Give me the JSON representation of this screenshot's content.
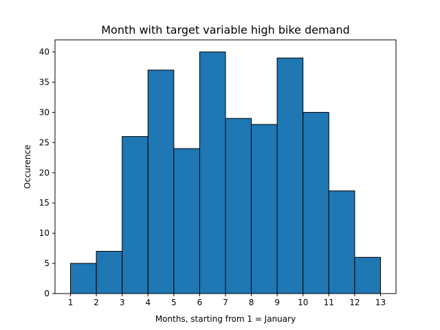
{
  "chart_data": {
    "type": "bar",
    "title": "Month with target variable high bike demand",
    "xlabel": "Months, starting from 1 = January",
    "ylabel": "Occurence",
    "bins": [
      {
        "start": 1,
        "end": 2,
        "value": 5
      },
      {
        "start": 2,
        "end": 3,
        "value": 7
      },
      {
        "start": 3,
        "end": 4,
        "value": 26
      },
      {
        "start": 4,
        "end": 5,
        "value": 37
      },
      {
        "start": 5,
        "end": 6,
        "value": 24
      },
      {
        "start": 6,
        "end": 7,
        "value": 40
      },
      {
        "start": 7,
        "end": 8,
        "value": 29
      },
      {
        "start": 8,
        "end": 9,
        "value": 28
      },
      {
        "start": 9,
        "end": 10,
        "value": 39
      },
      {
        "start": 10,
        "end": 11,
        "value": 30
      },
      {
        "start": 11,
        "end": 12,
        "value": 17
      },
      {
        "start": 12,
        "end": 13,
        "value": 6
      }
    ],
    "xticks": [
      1,
      2,
      3,
      4,
      5,
      6,
      7,
      8,
      9,
      10,
      11,
      12,
      13
    ],
    "yticks": [
      0,
      5,
      10,
      15,
      20,
      25,
      30,
      35,
      40
    ],
    "xlim": [
      0.4,
      13.6
    ],
    "ylim": [
      0,
      42
    ],
    "grid": false,
    "bar_color": "#1f77b4",
    "edge_color": "#000000"
  }
}
